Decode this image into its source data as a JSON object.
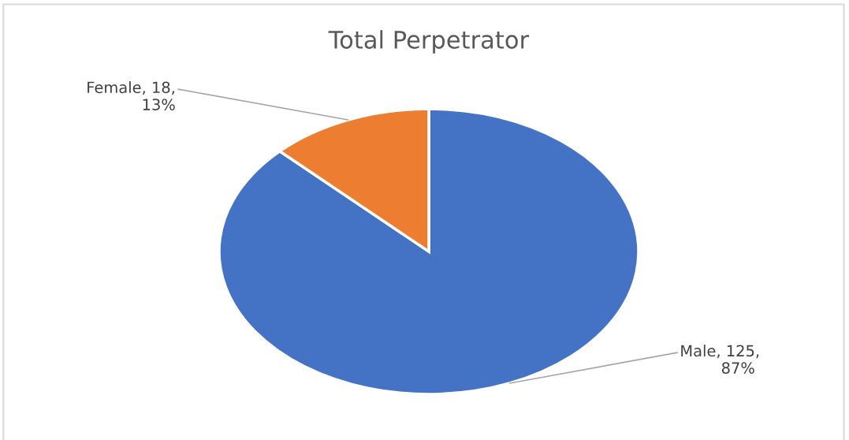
{
  "chart_data": {
    "type": "pie",
    "title": "Total Perpetrator",
    "categories": [
      "Male",
      "Female"
    ],
    "values": [
      125,
      18
    ],
    "colors": [
      "#4472c4",
      "#ed7d31"
    ],
    "value_labels": [
      ", 125, 87%",
      ", 18, 13%"
    ]
  }
}
